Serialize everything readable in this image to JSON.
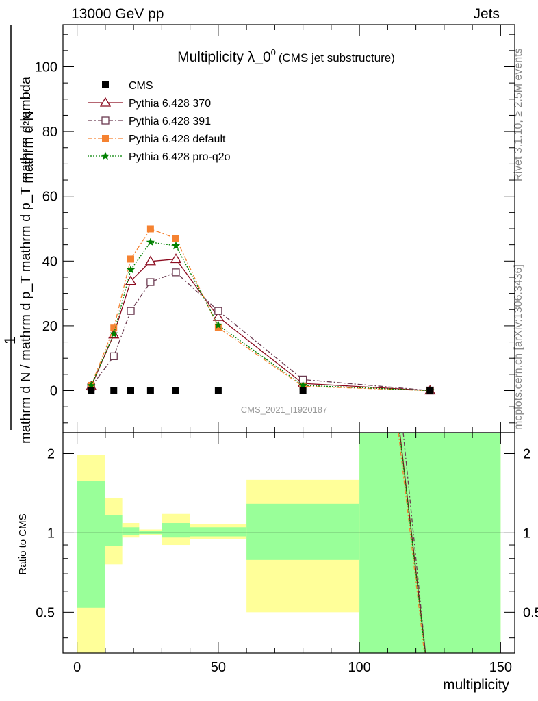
{
  "header": {
    "energy": "13000 GeV pp",
    "process": "Jets"
  },
  "side_labels": {
    "rivet": "Rivet 3.1.10, ≥ 2.5M events",
    "mcplots": "mcplots.cern.ch [arXiv:1306.3436]"
  },
  "chart_data": [
    {
      "type": "line",
      "title": "Multiplicity λ_0",
      "title_superscript": "0",
      "subtitle": "(CMS jet substructure)",
      "ylabel_top": "1",
      "ylabel_top_right": "mathrm d²N",
      "ylabel_main": "mathrm d N / mathrm d p_T mathrm d p_T mathrm d lambda",
      "watermark": "CMS_2021_I1920187",
      "x": [
        5,
        13,
        19,
        26,
        35,
        50,
        80,
        125
      ],
      "xlim": [
        -5,
        155
      ],
      "ylim": [
        -13,
        113
      ],
      "yticks": [
        0,
        20,
        40,
        60,
        80,
        100
      ],
      "legend_position": "top-left",
      "series": [
        {
          "name": "CMS",
          "color": "#000000",
          "marker": "filled-square",
          "line": "none",
          "values": [
            0,
            0,
            0,
            0,
            0,
            0,
            0,
            0
          ]
        },
        {
          "name": "Pythia 6.428 370",
          "color": "#8b0a1e",
          "marker": "open-triangle",
          "line": "solid",
          "values": [
            1.3,
            17.3,
            33.8,
            39.9,
            40.6,
            22.7,
            2.2,
            0
          ]
        },
        {
          "name": "Pythia 6.428 391",
          "color": "#6b3a50",
          "marker": "open-square",
          "line": "dashdot",
          "values": [
            1.2,
            10.6,
            24.6,
            33.5,
            36.5,
            24.6,
            3.4,
            0
          ]
        },
        {
          "name": "Pythia 6.428 default",
          "color": "#f58231",
          "marker": "filled-square",
          "line": "dashdot",
          "values": [
            1.6,
            19.3,
            40.6,
            49.9,
            47.0,
            19.4,
            1.3,
            0
          ]
        },
        {
          "name": "Pythia 6.428 pro-q2o",
          "color": "#008000",
          "marker": "star",
          "line": "dotted",
          "values": [
            1.5,
            17.5,
            37.3,
            45.8,
            44.7,
            20.2,
            1.6,
            0
          ]
        }
      ]
    },
    {
      "type": "area",
      "ylabel": "Ratio to CMS",
      "xlabel": "multiplicity",
      "xlim": [
        -5,
        155
      ],
      "ylim": [
        0.35,
        2.4
      ],
      "yscale": "log",
      "yticks": [
        0.5,
        1,
        2
      ],
      "xticks": [
        0,
        50,
        100,
        150
      ],
      "reference_line": 1,
      "bins": [
        {
          "x0": 0,
          "x1": 10,
          "yellow": [
            0.33,
            1.98
          ],
          "green": [
            0.52,
            1.57
          ]
        },
        {
          "x0": 10,
          "x1": 16,
          "yellow": [
            0.76,
            1.36
          ],
          "green": [
            0.89,
            1.17
          ]
        },
        {
          "x0": 16,
          "x1": 22,
          "yellow": [
            0.96,
            1.09
          ],
          "green": [
            0.98,
            1.05
          ]
        },
        {
          "x0": 22,
          "x1": 30,
          "yellow": [
            0.98,
            1.03
          ],
          "green": [
            0.99,
            1.02
          ]
        },
        {
          "x0": 30,
          "x1": 40,
          "yellow": [
            0.9,
            1.18
          ],
          "green": [
            0.96,
            1.09
          ]
        },
        {
          "x0": 40,
          "x1": 60,
          "yellow": [
            0.95,
            1.08
          ],
          "green": [
            0.97,
            1.05
          ]
        },
        {
          "x0": 60,
          "x1": 100,
          "yellow": [
            0.5,
            1.59
          ],
          "green": [
            0.79,
            1.29
          ]
        },
        {
          "x0": 100,
          "x1": 150,
          "yellow": [
            0.3,
            2.5
          ],
          "green": [
            0.3,
            2.5
          ]
        }
      ],
      "ratio_lines": [
        {
          "color": "#8b0a1e",
          "dash": "",
          "points": [
            [
              114.3,
              2.45
            ],
            [
              123.4,
              0.35
            ]
          ]
        },
        {
          "color": "#6b3a50",
          "dash": "6,3,2,3",
          "points": [
            [
              115.5,
              2.45
            ],
            [
              123.4,
              0.35
            ]
          ]
        },
        {
          "color": "#f58231",
          "dash": "6,3,2,3",
          "points": [
            [
              113.8,
              2.45
            ],
            [
              123.0,
              0.35
            ]
          ]
        },
        {
          "color": "#008000",
          "dash": "2,2",
          "points": [
            [
              114.2,
              2.45
            ],
            [
              123.3,
              0.35
            ]
          ]
        }
      ]
    }
  ]
}
